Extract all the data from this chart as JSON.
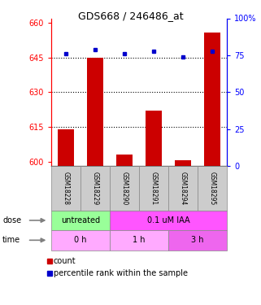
{
  "title": "GDS668 / 246486_at",
  "samples": [
    "GSM18228",
    "GSM18229",
    "GSM18290",
    "GSM18291",
    "GSM18294",
    "GSM18295"
  ],
  "bar_values": [
    614,
    645,
    603,
    622,
    600.5,
    656
  ],
  "percentile_values": [
    76,
    79,
    76,
    78,
    74,
    78
  ],
  "bar_color": "#cc0000",
  "dot_color": "#0000cc",
  "ylim_left": [
    598,
    662
  ],
  "ylim_right": [
    0,
    100
  ],
  "yticks_left": [
    600,
    615,
    630,
    645,
    660
  ],
  "yticks_right": [
    0,
    25,
    50,
    75,
    100
  ],
  "yticklabels_right": [
    "0",
    "25",
    "50",
    "75",
    "100%"
  ],
  "dose_groups": [
    {
      "label": "untreated",
      "start": 0,
      "end": 2,
      "color": "#99ff99"
    },
    {
      "label": "0.1 uM IAA",
      "start": 2,
      "end": 6,
      "color": "#ff55ff"
    }
  ],
  "time_groups": [
    {
      "label": "0 h",
      "start": 0,
      "end": 2,
      "color": "#ffaaff"
    },
    {
      "label": "1 h",
      "start": 2,
      "end": 4,
      "color": "#ffaaff"
    },
    {
      "label": "3 h",
      "start": 4,
      "end": 6,
      "color": "#ee66ee"
    }
  ],
  "dose_label": "dose",
  "time_label": "time",
  "legend_bar_label": "count",
  "legend_dot_label": "percentile rank within the sample",
  "bar_width": 0.55,
  "ybase": 598
}
